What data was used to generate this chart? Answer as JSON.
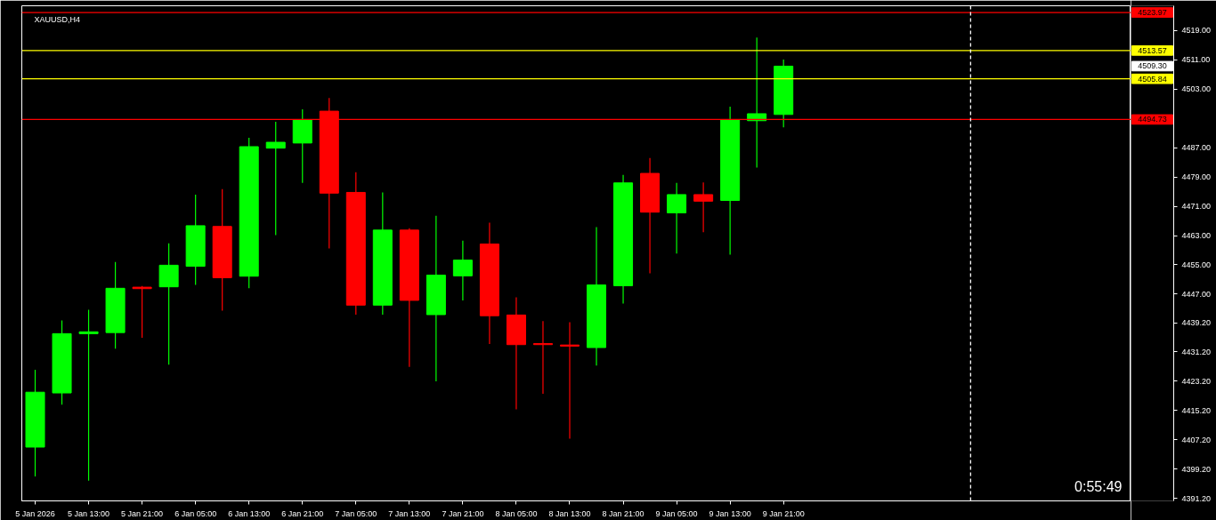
{
  "chart_data": {
    "type": "candlestick",
    "title": "XAUUSD,H4",
    "x": [
      "2026-01-05T05:00",
      "2026-01-05T09:00",
      "2026-01-05T13:00",
      "2026-01-05T17:00",
      "2026-01-05T21:00",
      "2026-01-06T01:00",
      "2026-01-06T05:00",
      "2026-01-06T09:00",
      "2026-01-06T13:00",
      "2026-01-06T17:00",
      "2026-01-06T21:00",
      "2026-01-07T01:00",
      "2026-01-07T05:00",
      "2026-01-07T09:00",
      "2026-01-07T13:00",
      "2026-01-07T17:00",
      "2026-01-07T21:00",
      "2026-01-08T01:00",
      "2026-01-08T05:00",
      "2026-01-08T09:00",
      "2026-01-08T13:00",
      "2026-01-08T17:00",
      "2026-01-08T21:00",
      "2026-01-09T01:00",
      "2026-01-09T05:00",
      "2026-01-09T09:00",
      "2026-01-09T13:00",
      "2026-01-09T17:00",
      "2026-01-09T21:00"
    ],
    "ohlc": [
      [
        4405.2,
        4426.3,
        4397.2,
        4420.2
      ],
      [
        4420.0,
        4439.8,
        4416.8,
        4436.2
      ],
      [
        4436.2,
        4442.7,
        4396.0,
        4436.7
      ],
      [
        4436.5,
        4455.8,
        4432.1,
        4448.6
      ],
      [
        4448.9,
        4449.2,
        4435.1,
        4448.5
      ],
      [
        4449.0,
        4460.9,
        4427.7,
        4454.9
      ],
      [
        4454.6,
        4474.2,
        4449.5,
        4465.7
      ],
      [
        4465.5,
        4475.7,
        4442.5,
        4451.5
      ],
      [
        4451.9,
        4489.7,
        4448.6,
        4487.3
      ],
      [
        4486.9,
        4494.1,
        4463.1,
        4488.5
      ],
      [
        4488.3,
        4497.5,
        4477.4,
        4494.6
      ],
      [
        4497.0,
        4500.6,
        4459.5,
        4474.6
      ],
      [
        4474.8,
        4480.3,
        4441.4,
        4444.0
      ],
      [
        4444.0,
        4474.8,
        4441.4,
        4464.5
      ],
      [
        4464.5,
        4465.0,
        4427.1,
        4445.3
      ],
      [
        4441.4,
        4468.4,
        4423.2,
        4452.2
      ],
      [
        4452.0,
        4461.6,
        4445.3,
        4456.3
      ],
      [
        4460.7,
        4466.5,
        4433.4,
        4441.1
      ],
      [
        4441.3,
        4446.1,
        4415.5,
        4433.2
      ],
      [
        4433.5,
        4439.6,
        4419.8,
        4433.2
      ],
      [
        4433.1,
        4439.3,
        4407.5,
        4432.8
      ],
      [
        4432.4,
        4465.3,
        4427.5,
        4449.5
      ],
      [
        4449.3,
        4479.6,
        4444.4,
        4477.4
      ],
      [
        4480.0,
        4484.2,
        4452.7,
        4469.4
      ],
      [
        4469.2,
        4477.4,
        4458.1,
        4474.2
      ],
      [
        4474.2,
        4477.5,
        4463.9,
        4472.4
      ],
      [
        4472.6,
        4498.2,
        4457.8,
        4494.6
      ],
      [
        4494.4,
        4517.1,
        4481.6,
        4496.3
      ],
      [
        4496.1,
        4511.1,
        4492.6,
        4509.3
      ]
    ],
    "colors": [
      "#00ff00",
      "#00ff00",
      "#00ff00",
      "#00ff00",
      "#ff0000",
      "#00ff00",
      "#00ff00",
      "#ff0000",
      "#00ff00",
      "#00ff00",
      "#00ff00",
      "#ff0000",
      "#ff0000",
      "#00ff00",
      "#ff0000",
      "#00ff00",
      "#00ff00",
      "#ff0000",
      "#ff0000",
      "#ff0000",
      "#ff0000",
      "#00ff00",
      "#00ff00",
      "#ff0000",
      "#00ff00",
      "#ff0000",
      "#00ff00",
      "#00ff00",
      "#00ff00"
    ],
    "xlim": [
      "2026-01-05T03:00",
      "2026-01-12T01:00"
    ],
    "xticks": [
      {
        "value": "2026-01-05T05:00",
        "label": "5 Jan 2026"
      },
      {
        "value": "2026-01-05T13:00",
        "label": "5 Jan 13:00"
      },
      {
        "value": "2026-01-05T21:00",
        "label": "5 Jan 21:00"
      },
      {
        "value": "2026-01-06T05:00",
        "label": "6 Jan 05:00"
      },
      {
        "value": "2026-01-06T13:00",
        "label": "6 Jan 13:00"
      },
      {
        "value": "2026-01-06T21:00",
        "label": "6 Jan 21:00"
      },
      {
        "value": "2026-01-07T05:00",
        "label": "7 Jan 05:00"
      },
      {
        "value": "2026-01-07T13:00",
        "label": "7 Jan 13:00"
      },
      {
        "value": "2026-01-07T21:00",
        "label": "7 Jan 21:00"
      },
      {
        "value": "2026-01-08T05:00",
        "label": "8 Jan 05:00"
      },
      {
        "value": "2026-01-08T13:00",
        "label": "8 Jan 13:00"
      },
      {
        "value": "2026-01-08T21:00",
        "label": "8 Jan 21:00"
      },
      {
        "value": "2026-01-09T05:00",
        "label": "9 Jan 05:00"
      },
      {
        "value": "2026-01-09T13:00",
        "label": "9 Jan 13:00"
      },
      {
        "value": "2026-01-09T21:00",
        "label": "9 Jan 21:00"
      }
    ],
    "ylim": [
      4390.5,
      4525.8
    ],
    "yticks": [
      {
        "value": 4519,
        "label": "4519.00"
      },
      {
        "value": 4511,
        "label": "4511.00"
      },
      {
        "value": 4503,
        "label": "4503.00"
      },
      {
        "value": 4487,
        "label": "4487.00"
      },
      {
        "value": 4479,
        "label": "4479.00"
      },
      {
        "value": 4471,
        "label": "4471.00"
      },
      {
        "value": 4463,
        "label": "4463.00"
      },
      {
        "value": 4455,
        "label": "4455.00"
      },
      {
        "value": 4447,
        "label": "4447.00"
      },
      {
        "value": 4439.2,
        "label": "4439.20"
      },
      {
        "value": 4431.2,
        "label": "4431.20"
      },
      {
        "value": 4423.2,
        "label": "4423.20"
      },
      {
        "value": 4415.2,
        "label": "4415.20"
      },
      {
        "value": 4407.2,
        "label": "4407.20"
      },
      {
        "value": 4399.2,
        "label": "4399.20"
      },
      {
        "value": 4391.2,
        "label": "4391.20"
      }
    ],
    "ref_lines": [
      {
        "axis": "y",
        "value": 4523.97,
        "label": "4523.97",
        "color": "#ff0000"
      },
      {
        "axis": "y",
        "value": 4513.57,
        "label": "4513.57",
        "color": "#ffff00"
      },
      {
        "axis": "y",
        "value": 4505.84,
        "label": "4505.84",
        "color": "#ffff00"
      },
      {
        "axis": "y",
        "value": 4494.73,
        "label": "4494.73",
        "color": "#ff0000"
      },
      {
        "axis": "x",
        "value": "2026-01-11T01:00",
        "color": "#ffffff",
        "line_style": "dashed"
      }
    ],
    "annotations": [
      "4509.30",
      "0:55:49"
    ],
    "grid": false
  }
}
